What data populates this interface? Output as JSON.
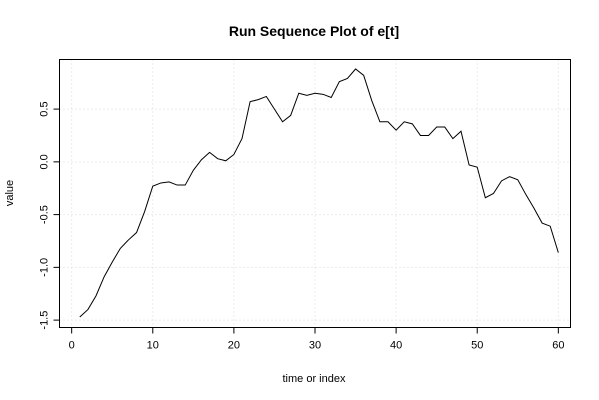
{
  "chart_data": {
    "type": "line",
    "title": "Run Sequence Plot of e[t]",
    "xlabel": "time or index",
    "ylabel": "value",
    "xlim": [
      -1.5,
      61.5
    ],
    "ylim": [
      -1.57,
      0.97
    ],
    "x_ticks": [
      0,
      10,
      20,
      30,
      40,
      50,
      60
    ],
    "y_ticks": [
      -1.5,
      -1.0,
      -0.5,
      0.0,
      0.5
    ],
    "x_tick_labels": [
      "0",
      "10",
      "20",
      "30",
      "40",
      "50",
      "60"
    ],
    "y_tick_labels": [
      "-1.5",
      "-1.0",
      "-0.5",
      "0.0",
      "0.5"
    ],
    "grid": true,
    "series": [
      {
        "x": [
          1,
          2,
          3,
          4,
          5,
          6,
          7,
          8,
          9,
          10,
          11,
          12,
          13,
          14,
          15,
          16,
          17,
          18,
          19,
          20,
          21,
          22,
          23,
          24,
          25,
          26,
          27,
          28,
          29,
          30,
          31,
          32,
          33,
          34,
          35,
          36,
          37,
          38,
          39,
          40,
          41,
          42,
          43,
          44,
          45,
          46,
          47,
          48,
          49,
          50,
          51,
          52,
          53,
          54,
          55,
          56,
          57,
          58,
          59,
          60
        ],
        "values": [
          -1.47,
          -1.4,
          -1.27,
          -1.09,
          -0.95,
          -0.82,
          -0.74,
          -0.67,
          -0.47,
          -0.23,
          -0.2,
          -0.19,
          -0.22,
          -0.22,
          -0.08,
          0.02,
          0.09,
          0.03,
          0.01,
          0.07,
          0.22,
          0.57,
          0.59,
          0.62,
          0.5,
          0.38,
          0.44,
          0.65,
          0.63,
          0.65,
          0.64,
          0.61,
          0.76,
          0.79,
          0.88,
          0.82,
          0.58,
          0.38,
          0.38,
          0.3,
          0.38,
          0.36,
          0.25,
          0.25,
          0.33,
          0.33,
          0.22,
          0.29,
          -0.03,
          -0.05,
          -0.34,
          -0.3,
          -0.18,
          -0.14,
          -0.17,
          -0.31,
          -0.44,
          -0.58,
          -0.61,
          -0.86
        ]
      }
    ]
  }
}
